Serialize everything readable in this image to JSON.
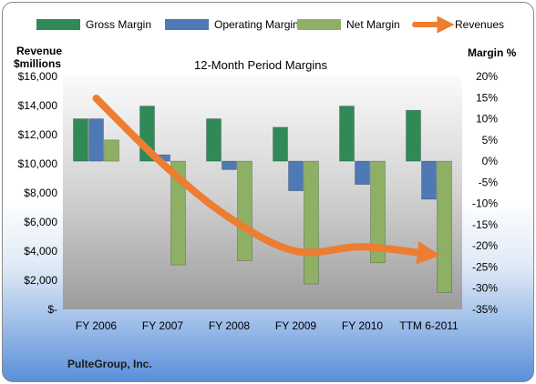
{
  "chart_data": {
    "type": "bar",
    "title": "12-Month Period Margins",
    "company": "PulteGroup, Inc.",
    "left_axis_title_line1": "Revenue",
    "left_axis_title_line2": "$millions",
    "right_axis_title": "Margin %",
    "categories": [
      "FY 2006",
      "FY 2007",
      "FY 2008",
      "FY 2009",
      "FY 2010",
      "TTM 6-2011"
    ],
    "left_ticks": [
      "$-",
      "$2,000",
      "$4,000",
      "$6,000",
      "$8,000",
      "$10,000",
      "$12,000",
      "$14,000",
      "$16,000"
    ],
    "right_ticks": [
      "-35%",
      "-30%",
      "-25%",
      "-20%",
      "-15%",
      "-10%",
      "-5%",
      "0%",
      "5%",
      "10%",
      "15%",
      "20%"
    ],
    "ylim_left": [
      0,
      16000
    ],
    "ylim_right": [
      -35,
      20
    ],
    "legend_position": "top",
    "series": [
      {
        "name": "Gross Margin",
        "kind": "bar",
        "axis": "right",
        "color": "#2f8a57",
        "values": [
          10,
          13,
          10,
          8,
          13,
          12
        ]
      },
      {
        "name": "Operating Margin",
        "kind": "bar",
        "axis": "right",
        "color": "#4f79b5",
        "values": [
          10,
          1.5,
          -2,
          -7,
          -5.5,
          -9
        ]
      },
      {
        "name": "Net Margin",
        "kind": "bar",
        "axis": "right",
        "color": "#8db065",
        "values": [
          5,
          -24.5,
          -23.5,
          -29,
          -24,
          -31
        ]
      },
      {
        "name": "Revenues",
        "kind": "line",
        "axis": "left",
        "color": "#ed7d31",
        "values": [
          14500,
          10000,
          6300,
          4000,
          4300,
          3800
        ]
      }
    ]
  }
}
